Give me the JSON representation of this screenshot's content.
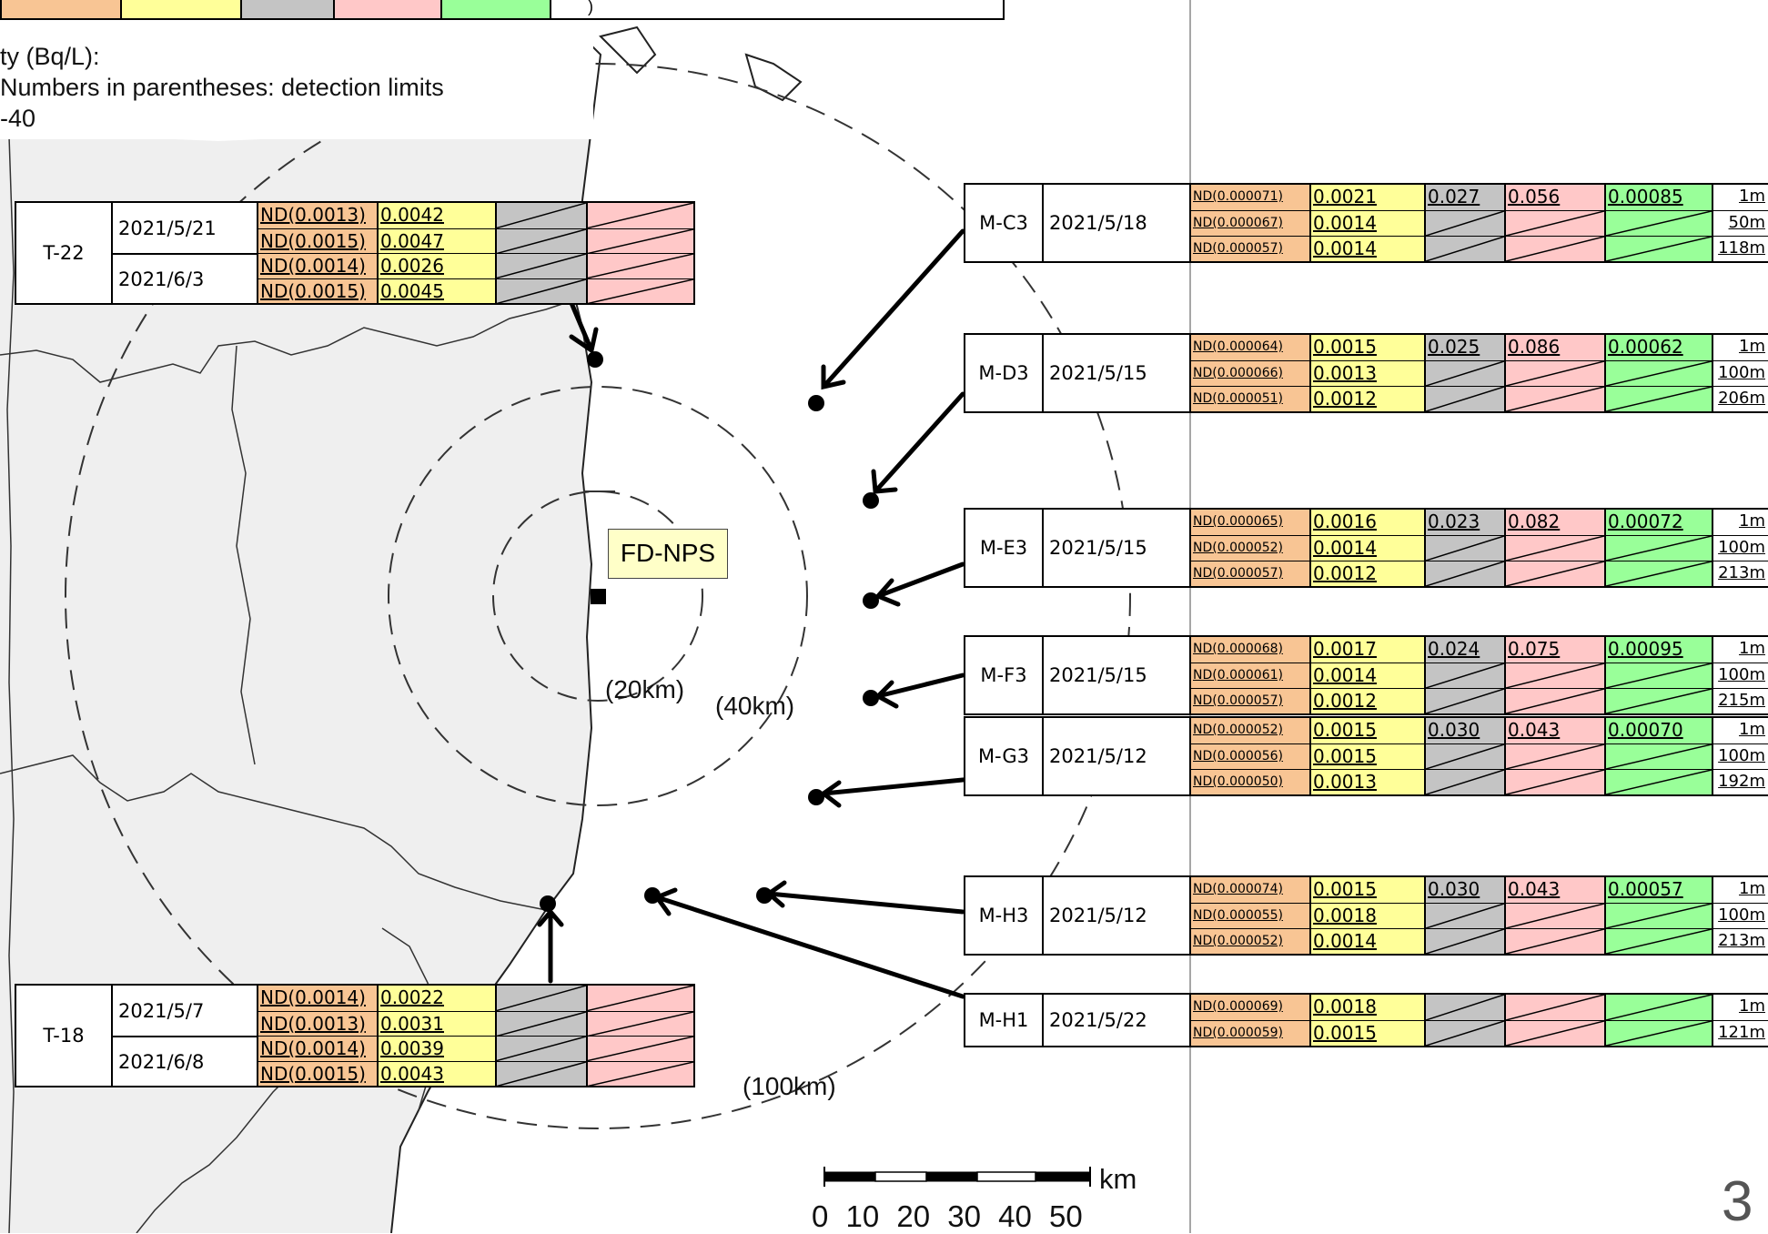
{
  "legend_strip": {
    "partial_text": ")"
  },
  "note": {
    "line1": "ty (Bq/L):",
    "line2": "Numbers in parentheses: detection limits",
    "line3": "-40"
  },
  "plant": {
    "label": "FD-NPS"
  },
  "radius_labels": [
    "(20km)",
    "(40km)",
    "(100km)"
  ],
  "scale_bar": {
    "unit": "km",
    "ticks": "0 10 20 30 40 50"
  },
  "page_number": "3",
  "colors": {
    "orange": "#f8c594",
    "yellow": "#ffff99",
    "gray": "#c4c4c4",
    "pink": "#ffc8c8",
    "green": "#99ff99",
    "land": "#efefef"
  },
  "coastal_stations": [
    {
      "name": "T-22",
      "dates": [
        {
          "date": "2021/5/21",
          "rows": [
            [
              "ND(0.0013)",
              "0.0042"
            ],
            [
              "ND(0.0015)",
              "0.0047"
            ]
          ]
        },
        {
          "date": "2021/6/3",
          "rows": [
            [
              "ND(0.0014)",
              "0.0026"
            ],
            [
              "ND(0.0015)",
              "0.0045"
            ]
          ]
        }
      ]
    },
    {
      "name": "T-18",
      "dates": [
        {
          "date": "2021/5/7",
          "rows": [
            [
              "ND(0.0014)",
              "0.0022"
            ],
            [
              "ND(0.0013)",
              "0.0031"
            ]
          ]
        },
        {
          "date": "2021/6/8",
          "rows": [
            [
              "ND(0.0014)",
              "0.0039"
            ],
            [
              "ND(0.0015)",
              "0.0043"
            ]
          ]
        }
      ]
    }
  ],
  "offshore_stations": [
    {
      "name": "M-C3",
      "date": "2021/5/18",
      "rows": [
        [
          "ND(0.000071)",
          "0.0021",
          "0.027",
          "0.056",
          "0.00085",
          "1m"
        ],
        [
          "ND(0.000067)",
          "0.0014",
          "",
          "",
          "",
          "50m"
        ],
        [
          "ND(0.000057)",
          "0.0014",
          "",
          "",
          "",
          "118m"
        ]
      ]
    },
    {
      "name": "M-D3",
      "date": "2021/5/15",
      "rows": [
        [
          "ND(0.000064)",
          "0.0015",
          "0.025",
          "0.086",
          "0.00062",
          "1m"
        ],
        [
          "ND(0.000066)",
          "0.0013",
          "",
          "",
          "",
          "100m"
        ],
        [
          "ND(0.000051)",
          "0.0012",
          "",
          "",
          "",
          "206m"
        ]
      ]
    },
    {
      "name": "M-E3",
      "date": "2021/5/15",
      "rows": [
        [
          "ND(0.000065)",
          "0.0016",
          "0.023",
          "0.082",
          "0.00072",
          "1m"
        ],
        [
          "ND(0.000052)",
          "0.0014",
          "",
          "",
          "",
          "100m"
        ],
        [
          "ND(0.000057)",
          "0.0012",
          "",
          "",
          "",
          "213m"
        ]
      ]
    },
    {
      "name": "M-F3",
      "date": "2021/5/15",
      "rows": [
        [
          "ND(0.000068)",
          "0.0017",
          "0.024",
          "0.075",
          "0.00095",
          "1m"
        ],
        [
          "ND(0.000061)",
          "0.0014",
          "",
          "",
          "",
          "100m"
        ],
        [
          "ND(0.000057)",
          "0.0012",
          "",
          "",
          "",
          "215m"
        ]
      ]
    },
    {
      "name": "M-G3",
      "date": "2021/5/12",
      "rows": [
        [
          "ND(0.000052)",
          "0.0015",
          "0.030",
          "0.043",
          "0.00070",
          "1m"
        ],
        [
          "ND(0.000056)",
          "0.0015",
          "",
          "",
          "",
          "100m"
        ],
        [
          "ND(0.000050)",
          "0.0013",
          "",
          "",
          "",
          "192m"
        ]
      ]
    },
    {
      "name": "M-H3",
      "date": "2021/5/12",
      "rows": [
        [
          "ND(0.000074)",
          "0.0015",
          "0.030",
          "0.043",
          "0.00057",
          "1m"
        ],
        [
          "ND(0.000055)",
          "0.0018",
          "",
          "",
          "",
          "100m"
        ],
        [
          "ND(0.000052)",
          "0.0014",
          "",
          "",
          "",
          "213m"
        ]
      ]
    },
    {
      "name": "M-H1",
      "date": "2021/5/22",
      "rows": [
        [
          "ND(0.000069)",
          "0.0018",
          "",
          "",
          "",
          "1m"
        ],
        [
          "ND(0.000059)",
          "0.0015",
          "",
          "",
          "",
          "121m"
        ]
      ]
    }
  ]
}
